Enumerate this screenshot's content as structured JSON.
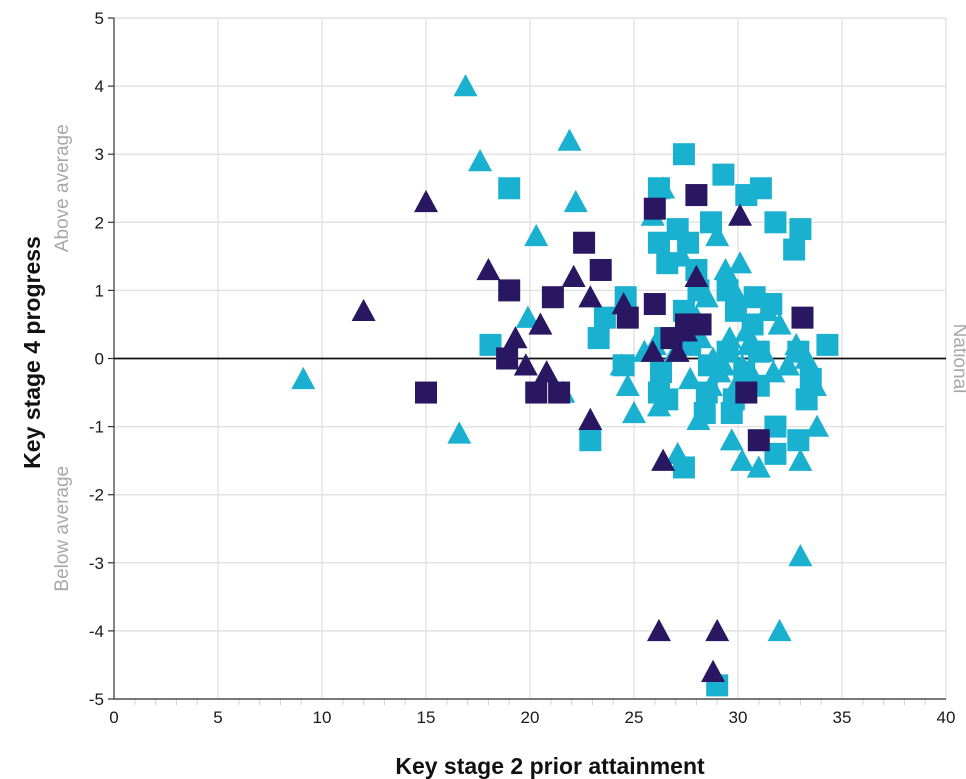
{
  "chart_data": {
    "type": "scatter",
    "xlabel": "Key stage 2 prior attainment",
    "ylabel": "Key stage 4 progress",
    "xlim": [
      0,
      40
    ],
    "ylim": [
      -5,
      5
    ],
    "x_ticks": [
      0,
      5,
      10,
      15,
      20,
      25,
      30,
      35,
      40
    ],
    "y_ticks": [
      5,
      4,
      3,
      2,
      1,
      0,
      -1,
      -2,
      -3,
      -4,
      -5
    ],
    "grid": true,
    "reference_line": {
      "y": 0,
      "label": "National"
    },
    "annotations": {
      "above": "Above average",
      "below": "Below average"
    },
    "colors": {
      "dark": "#2a1762",
      "light": "#1ab0d0",
      "grid": "#e3e3e3",
      "muted_text": "#a8a8a8"
    },
    "series": [
      {
        "marker": "triangle",
        "color": "#1ab0d0",
        "points": [
          [
            9.1,
            -0.3
          ],
          [
            16.9,
            4.0
          ],
          [
            17.6,
            2.9
          ],
          [
            21.9,
            3.2
          ],
          [
            22.2,
            2.3
          ],
          [
            20.3,
            1.8
          ],
          [
            16.6,
            -1.1
          ],
          [
            19.9,
            0.6
          ],
          [
            21.6,
            -0.5
          ],
          [
            25.9,
            2.1
          ],
          [
            26.4,
            2.5
          ],
          [
            27.3,
            1.5
          ],
          [
            29.0,
            1.8
          ],
          [
            29.4,
            1.3
          ],
          [
            30.1,
            1.4
          ],
          [
            30.0,
            0.9
          ],
          [
            28.5,
            0.9
          ],
          [
            27.6,
            0.5
          ],
          [
            28.2,
            0.3
          ],
          [
            29.6,
            0.3
          ],
          [
            30.4,
            0.4
          ],
          [
            31.4,
            0.7
          ],
          [
            32.0,
            0.5
          ],
          [
            26.0,
            0.2
          ],
          [
            28.8,
            0.0
          ],
          [
            29.3,
            -0.1
          ],
          [
            30.2,
            -0.1
          ],
          [
            31.2,
            0.1
          ],
          [
            32.4,
            -0.1
          ],
          [
            33.3,
            0.0
          ],
          [
            24.4,
            -0.1
          ],
          [
            24.7,
            -0.4
          ],
          [
            26.3,
            -0.5
          ],
          [
            27.7,
            -0.3
          ],
          [
            28.7,
            -0.4
          ],
          [
            29.9,
            -0.4
          ],
          [
            30.8,
            -0.3
          ],
          [
            31.7,
            -0.2
          ],
          [
            33.7,
            -0.4
          ],
          [
            25.0,
            -0.8
          ],
          [
            26.2,
            -0.7
          ],
          [
            28.1,
            -0.9
          ],
          [
            29.7,
            -1.2
          ],
          [
            30.2,
            -1.5
          ],
          [
            31.0,
            -1.6
          ],
          [
            33.0,
            -1.5
          ],
          [
            33.8,
            -1.0
          ],
          [
            27.1,
            -1.4
          ],
          [
            33.0,
            -2.9
          ],
          [
            32.0,
            -4.0
          ],
          [
            30.5,
            0.2
          ],
          [
            28.0,
            0.6
          ],
          [
            25.5,
            0.1
          ],
          [
            32.8,
            0.2
          ],
          [
            27.0,
            0.1
          ],
          [
            29.1,
            -0.2
          ]
        ]
      },
      {
        "marker": "square",
        "color": "#1ab0d0",
        "points": [
          [
            19.0,
            2.5
          ],
          [
            18.1,
            0.2
          ],
          [
            27.4,
            3.0
          ],
          [
            29.3,
            2.7
          ],
          [
            26.2,
            2.5
          ],
          [
            30.4,
            2.4
          ],
          [
            31.1,
            2.5
          ],
          [
            31.8,
            2.0
          ],
          [
            33.0,
            1.9
          ],
          [
            32.7,
            1.6
          ],
          [
            27.1,
            1.9
          ],
          [
            28.7,
            2.0
          ],
          [
            26.2,
            1.7
          ],
          [
            27.6,
            1.7
          ],
          [
            29.5,
            1.0
          ],
          [
            28.1,
            1.0
          ],
          [
            30.8,
            0.9
          ],
          [
            31.6,
            0.8
          ],
          [
            27.4,
            0.7
          ],
          [
            29.9,
            0.7
          ],
          [
            30.7,
            0.5
          ],
          [
            24.6,
            0.9
          ],
          [
            23.6,
            0.6
          ],
          [
            23.3,
            0.3
          ],
          [
            26.5,
            0.3
          ],
          [
            27.7,
            0.2
          ],
          [
            29.5,
            0.1
          ],
          [
            31.0,
            0.1
          ],
          [
            32.9,
            0.1
          ],
          [
            34.3,
            0.2
          ],
          [
            24.5,
            -0.1
          ],
          [
            26.3,
            -0.2
          ],
          [
            28.6,
            -0.1
          ],
          [
            30.3,
            -0.2
          ],
          [
            33.5,
            -0.3
          ],
          [
            26.2,
            -0.5
          ],
          [
            28.5,
            -0.5
          ],
          [
            29.8,
            -0.6
          ],
          [
            31.0,
            -0.4
          ],
          [
            33.3,
            -0.6
          ],
          [
            26.6,
            -0.6
          ],
          [
            28.4,
            -0.8
          ],
          [
            29.7,
            -0.8
          ],
          [
            31.8,
            -1.0
          ],
          [
            31.8,
            -1.4
          ],
          [
            32.9,
            -1.2
          ],
          [
            22.9,
            -1.2
          ],
          [
            27.4,
            -1.6
          ],
          [
            29.0,
            -4.8
          ],
          [
            28.0,
            1.3
          ],
          [
            26.6,
            1.4
          ]
        ]
      },
      {
        "marker": "triangle",
        "color": "#2a1762",
        "points": [
          [
            12.0,
            0.7
          ],
          [
            15.0,
            2.3
          ],
          [
            18.0,
            1.3
          ],
          [
            22.1,
            1.2
          ],
          [
            19.3,
            0.3
          ],
          [
            20.5,
            0.5
          ],
          [
            19.8,
            -0.1
          ],
          [
            20.8,
            -0.2
          ],
          [
            22.9,
            0.9
          ],
          [
            22.9,
            -0.9
          ],
          [
            25.9,
            0.1
          ],
          [
            27.1,
            0.1
          ],
          [
            27.5,
            0.4
          ],
          [
            30.1,
            2.1
          ],
          [
            26.4,
            -1.5
          ],
          [
            26.2,
            -4.0
          ],
          [
            29.0,
            -4.0
          ],
          [
            28.8,
            -4.6
          ],
          [
            24.5,
            0.8
          ],
          [
            28.0,
            1.2
          ]
        ]
      },
      {
        "marker": "square",
        "color": "#2a1762",
        "points": [
          [
            15.0,
            -0.5
          ],
          [
            19.0,
            1.0
          ],
          [
            18.9,
            0.0
          ],
          [
            21.1,
            0.9
          ],
          [
            20.3,
            -0.5
          ],
          [
            21.4,
            -0.5
          ],
          [
            22.6,
            1.7
          ],
          [
            23.4,
            1.3
          ],
          [
            24.7,
            0.6
          ],
          [
            26.0,
            0.8
          ],
          [
            26.0,
            2.2
          ],
          [
            28.0,
            2.4
          ],
          [
            26.8,
            0.3
          ],
          [
            27.5,
            0.5
          ],
          [
            28.2,
            0.5
          ],
          [
            30.4,
            -0.5
          ],
          [
            31.0,
            -1.2
          ],
          [
            33.1,
            0.6
          ]
        ]
      }
    ]
  }
}
